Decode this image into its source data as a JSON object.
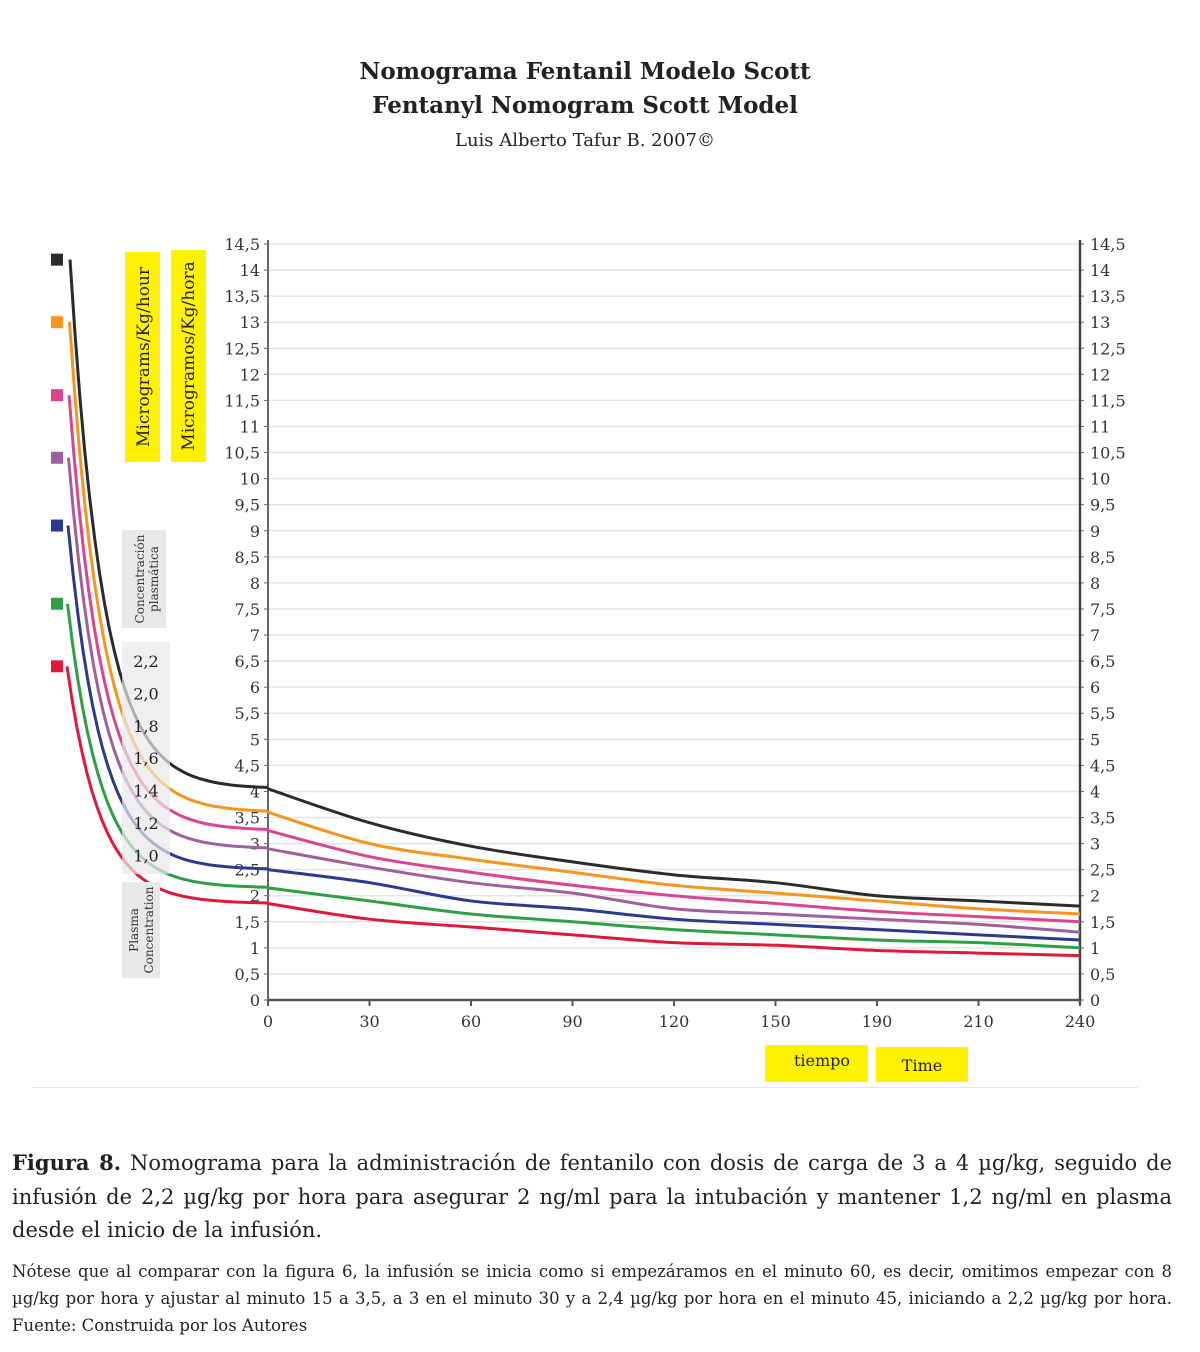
{
  "header": {
    "title_es": "Nomograma Fentanil Modelo Scott",
    "title_en": "Fentanyl Nomogram Scott Model",
    "author": "Luis Alberto Tafur B. 2007©"
  },
  "chart_data": {
    "type": "line",
    "title": "Nomograma Fentanil Modelo Scott / Fentanyl Nomogram Scott Model",
    "x_tick_labels": [
      "0",
      "30",
      "60",
      "90",
      "120",
      "150",
      "190",
      "210",
      "240"
    ],
    "xlabel": [
      "tiempo",
      "Time"
    ],
    "ylabel": [
      "Micrograms/Kg/hour",
      "Microgramos/Kg/hora"
    ],
    "ylim": [
      0,
      14.5
    ],
    "y_ticks": [
      "0",
      "0,5",
      "1",
      "1,5",
      "2",
      "2,5",
      "3",
      "3,5",
      "4",
      "4,5",
      "5",
      "5,5",
      "6",
      "6,5",
      "7",
      "7,5",
      "8",
      "8,5",
      "9",
      "9,5",
      "10",
      "10,5",
      "11",
      "11,5",
      "12",
      "12,5",
      "13",
      "13,5",
      "14",
      "14,5"
    ],
    "grid": true,
    "legend_placement": "left",
    "plasma_label_es": "Concentración plasmática",
    "plasma_label_en": "Plasma Concentration",
    "plasma_levels": [
      "2,2",
      "2,0",
      "1,8",
      "1,6",
      "1,4",
      "1,2",
      "1,0"
    ],
    "series": [
      {
        "plasma": "2,2",
        "color": "#2b2b2b",
        "initial": 14.2,
        "values": [
          4.05,
          3.4,
          2.95,
          2.65,
          2.4,
          2.25,
          2.0,
          1.9,
          1.8
        ]
      },
      {
        "plasma": "2,0",
        "color": "#f7941d",
        "initial": 13.0,
        "values": [
          3.6,
          3.0,
          2.7,
          2.45,
          2.2,
          2.05,
          1.9,
          1.75,
          1.65
        ]
      },
      {
        "plasma": "1,8",
        "color": "#d9458f",
        "initial": 11.6,
        "values": [
          3.25,
          2.75,
          2.45,
          2.2,
          2.0,
          1.85,
          1.7,
          1.6,
          1.5
        ]
      },
      {
        "plasma": "1,6",
        "color": "#a0609f",
        "initial": 10.4,
        "values": [
          2.9,
          2.55,
          2.25,
          2.05,
          1.75,
          1.65,
          1.55,
          1.45,
          1.3
        ]
      },
      {
        "plasma": "1,4",
        "color": "#2b3990",
        "initial": 9.1,
        "values": [
          2.5,
          2.25,
          1.9,
          1.75,
          1.55,
          1.45,
          1.35,
          1.25,
          1.15
        ]
      },
      {
        "plasma": "1,2",
        "color": "#2ea043",
        "initial": 7.6,
        "values": [
          2.15,
          1.9,
          1.65,
          1.5,
          1.35,
          1.25,
          1.15,
          1.1,
          1.0
        ]
      },
      {
        "plasma": "1,0",
        "color": "#e0193b",
        "initial": 6.4,
        "values": [
          1.85,
          1.55,
          1.4,
          1.25,
          1.1,
          1.05,
          0.95,
          0.9,
          0.85
        ]
      }
    ],
    "label_highlight_color": "#fff200"
  },
  "caption": {
    "label": "Figura 8.",
    "text": " Nomograma para la administración de fentanilo con dosis de carga de 3 a 4 µg/kg, seguido de infusión de 2,2 µg/kg por hora para asegurar 2 ng/ml para la intubación y mantener 1,2 ng/ml en plasma desde el inicio de la infusión.",
    "note": "Nótese que al comparar con la figura 6, la infusión se inicia como si empezáramos en el minuto 60, es decir, omitimos empezar con 8 µg/kg por hora y ajustar al minuto 15 a 3,5, a 3 en el minuto 30 y a 2,4 µg/kg por hora en el minuto 45, iniciando a 2,2 µg/kg por hora. Fuente: Construida por los Autores"
  }
}
